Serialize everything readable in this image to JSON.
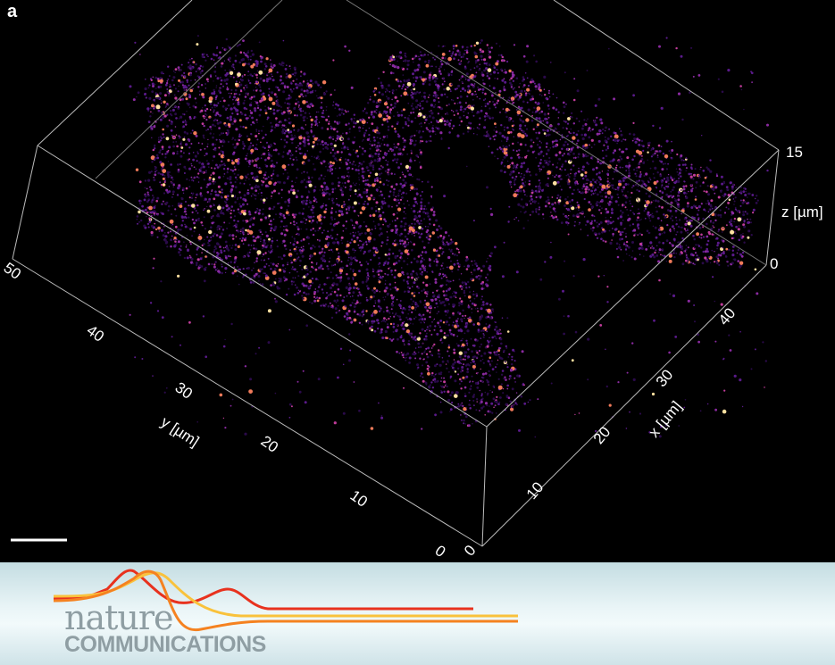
{
  "figure": {
    "panel_label": "a",
    "axes": {
      "y": {
        "label": "y [µm]",
        "ticks": [
          "50",
          "40",
          "30",
          "20",
          "10",
          "0"
        ]
      },
      "x": {
        "label": "x [µm]",
        "ticks": [
          "0",
          "10",
          "20",
          "30",
          "40"
        ]
      },
      "z": {
        "label": "z [µm]",
        "ticks": [
          "15",
          "0"
        ]
      }
    },
    "colormap": [
      "#2a0a4a",
      "#5a1a8a",
      "#8a2aa0",
      "#c03c9a",
      "#f07a5a",
      "#fde0a0"
    ],
    "background": "#000000"
  },
  "banner": {
    "logo_line1": "nature",
    "logo_line2": "COMMUNICATIONS",
    "ribbon_colors": [
      "#e8321e",
      "#f58220",
      "#f9c23c"
    ]
  }
}
